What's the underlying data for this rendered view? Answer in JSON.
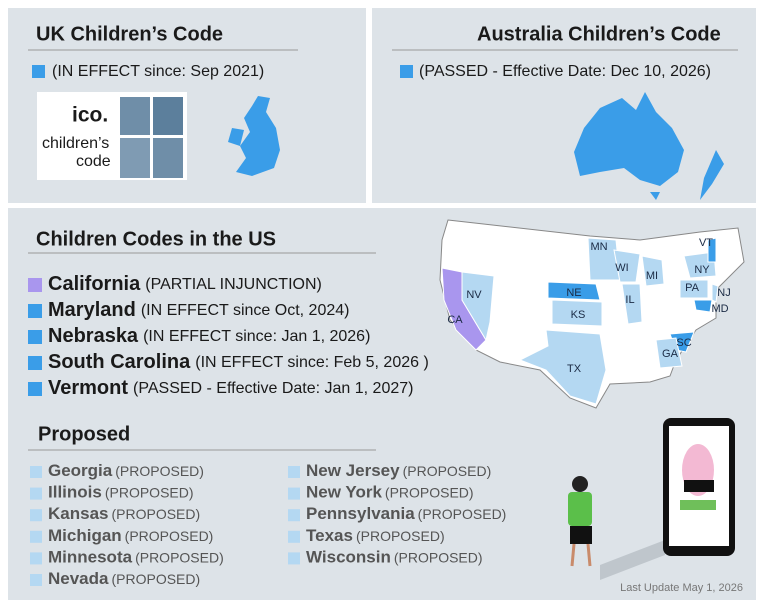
{
  "uk": {
    "title": "UK Children’s Code",
    "status": "(IN EFFECT since: Sep 2021)",
    "color": "#3a9de8",
    "logo": {
      "brand": "ico.",
      "line1": "children’s",
      "line2": "code"
    }
  },
  "australia": {
    "title": "Australia Children’s Code",
    "status": "(PASSED - Effective Date: Dec 10, 2026)",
    "color": "#3a9de8"
  },
  "us": {
    "title": "Children Codes in the US",
    "states": [
      {
        "name": "California",
        "status": "(PARTIAL INJUNCTION)",
        "color": "#a996ee"
      },
      {
        "name": "Maryland",
        "status": "(IN EFFECT since Oct, 2024)",
        "color": "#3a9de8"
      },
      {
        "name": "Nebraska",
        "status": "(IN EFFECT since: Jan 1, 2026)",
        "color": "#3a9de8"
      },
      {
        "name": "South Carolina",
        "status": "(IN EFFECT since: Feb 5, 2026 )",
        "color": "#3a9de8"
      },
      {
        "name": "Vermont",
        "status": "(PASSED - Effective Date: Jan 1, 2027)",
        "color": "#3a9de8"
      }
    ],
    "map_labels": [
      "MN",
      "VT",
      "NY",
      "WI",
      "MI",
      "NV",
      "NE",
      "PA",
      "NJ",
      "IL",
      "MD",
      "KS",
      "CA",
      "SC",
      "GA",
      "TX"
    ]
  },
  "proposed": {
    "title": "Proposed",
    "color": "#b4d8f2",
    "states": [
      {
        "name": "Georgia",
        "status": "(PROPOSED)"
      },
      {
        "name": "Illinois",
        "status": "(PROPOSED)"
      },
      {
        "name": "Kansas",
        "status": "(PROPOSED)"
      },
      {
        "name": "Michigan",
        "status": "(PROPOSED)"
      },
      {
        "name": "Minnesota",
        "status": "(PROPOSED)"
      },
      {
        "name": "Nevada",
        "status": "(PROPOSED)"
      },
      {
        "name": "New Jersey",
        "status": "(PROPOSED)"
      },
      {
        "name": "New York",
        "status": "(PROPOSED)"
      },
      {
        "name": "Pennsylvania",
        "status": "(PROPOSED)"
      },
      {
        "name": "Texas",
        "status": "(PROPOSED)"
      },
      {
        "name": "Wisconsin",
        "status": "(PROPOSED)"
      }
    ]
  },
  "footer": "Last Update May 1, 2026"
}
